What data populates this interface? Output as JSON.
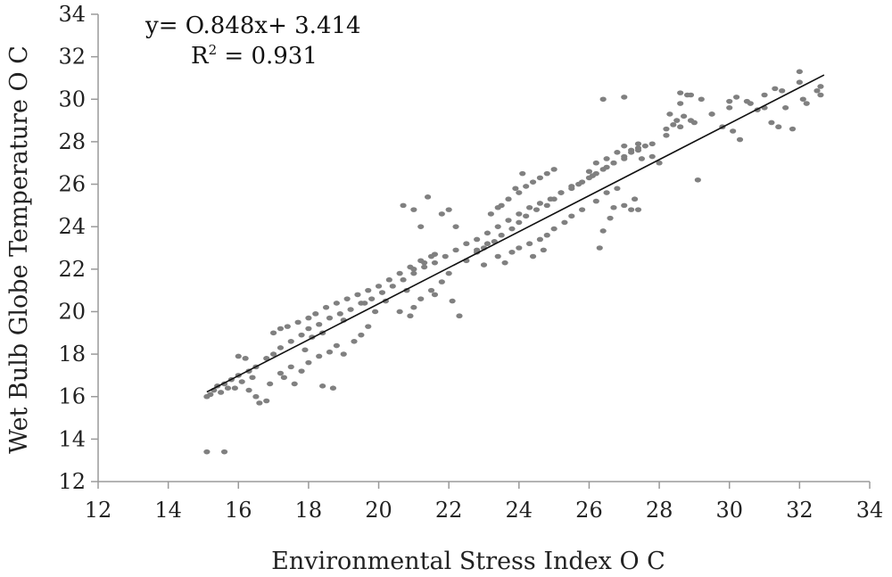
{
  "chart_data": {
    "type": "scatter",
    "title": "",
    "xlabel": "Environmental Stress Index  O C",
    "ylabel": "Wet Bulb Globe Temperature O C",
    "xlim": [
      12,
      34
    ],
    "ylim": [
      12,
      34
    ],
    "xticks": [
      "12",
      "14",
      "16",
      "18",
      "20",
      "22",
      "24",
      "26",
      "28",
      "30",
      "32",
      "34"
    ],
    "yticks": [
      "12",
      "14",
      "16",
      "18",
      "20",
      "22",
      "24",
      "26",
      "28",
      "30",
      "32",
      "34"
    ],
    "grid": false,
    "legend": "none",
    "marker_color": "#808080",
    "trendline_color": "#111111",
    "annotations": {
      "equation": "y= O.848x+ 3.414",
      "r2_prefix": "R",
      "r2_sup": "2",
      "r2_suffix": " = 0.931"
    },
    "trendline": {
      "slope": 0.848,
      "intercept": 3.414,
      "x_range": [
        15.1,
        32.7
      ]
    },
    "points": [
      [
        15.1,
        16.0
      ],
      [
        15.2,
        16.1
      ],
      [
        15.3,
        16.3
      ],
      [
        15.4,
        16.5
      ],
      [
        15.6,
        16.6
      ],
      [
        15.8,
        16.8
      ],
      [
        16.0,
        17.0
      ],
      [
        16.3,
        17.2
      ],
      [
        16.5,
        17.4
      ],
      [
        16.8,
        17.8
      ],
      [
        17.0,
        18.0
      ],
      [
        17.2,
        18.3
      ],
      [
        17.5,
        18.6
      ],
      [
        17.8,
        18.9
      ],
      [
        18.0,
        19.2
      ],
      [
        18.3,
        19.4
      ],
      [
        18.6,
        19.7
      ],
      [
        18.9,
        19.9
      ],
      [
        19.2,
        20.1
      ],
      [
        19.5,
        20.4
      ],
      [
        19.8,
        20.6
      ],
      [
        20.1,
        20.9
      ],
      [
        20.4,
        21.2
      ],
      [
        20.7,
        21.5
      ],
      [
        21.0,
        21.8
      ],
      [
        21.3,
        22.1
      ],
      [
        21.6,
        22.3
      ],
      [
        21.9,
        22.6
      ],
      [
        22.2,
        22.9
      ],
      [
        22.5,
        23.2
      ],
      [
        22.8,
        23.4
      ],
      [
        23.1,
        23.7
      ],
      [
        23.4,
        24.0
      ],
      [
        23.7,
        24.3
      ],
      [
        24.0,
        24.6
      ],
      [
        24.3,
        24.9
      ],
      [
        24.6,
        25.1
      ],
      [
        24.9,
        25.3
      ],
      [
        25.2,
        25.6
      ],
      [
        25.5,
        25.9
      ],
      [
        25.8,
        26.1
      ],
      [
        26.1,
        26.4
      ],
      [
        26.4,
        26.7
      ],
      [
        26.7,
        27.0
      ],
      [
        27.0,
        27.3
      ],
      [
        27.4,
        27.6
      ],
      [
        27.8,
        27.9
      ],
      [
        28.2,
        28.3
      ],
      [
        28.6,
        28.7
      ],
      [
        29.0,
        28.9
      ],
      [
        29.5,
        29.3
      ],
      [
        30.0,
        29.6
      ],
      [
        30.5,
        29.9
      ],
      [
        31.0,
        30.2
      ],
      [
        31.5,
        30.4
      ],
      [
        32.0,
        30.8
      ],
      [
        32.5,
        30.4
      ],
      [
        16.5,
        16.0
      ],
      [
        16.6,
        15.7
      ],
      [
        16.8,
        15.8
      ],
      [
        16.3,
        16.3
      ],
      [
        16.9,
        16.6
      ],
      [
        17.3,
        16.9
      ],
      [
        17.6,
        16.6
      ],
      [
        17.8,
        17.2
      ],
      [
        18.0,
        17.6
      ],
      [
        18.3,
        17.9
      ],
      [
        18.6,
        18.1
      ],
      [
        18.8,
        18.4
      ],
      [
        19.0,
        18.0
      ],
      [
        19.3,
        18.6
      ],
      [
        19.5,
        18.9
      ],
      [
        19.7,
        19.3
      ],
      [
        18.4,
        16.5
      ],
      [
        18.7,
        16.4
      ],
      [
        17.2,
        17.1
      ],
      [
        17.5,
        17.4
      ],
      [
        17.0,
        19.0
      ],
      [
        17.2,
        19.2
      ],
      [
        17.4,
        19.3
      ],
      [
        17.7,
        19.5
      ],
      [
        18.0,
        19.7
      ],
      [
        18.2,
        19.9
      ],
      [
        18.5,
        20.2
      ],
      [
        18.8,
        20.4
      ],
      [
        19.1,
        20.6
      ],
      [
        19.4,
        20.8
      ],
      [
        19.7,
        21.0
      ],
      [
        20.0,
        21.2
      ],
      [
        20.3,
        21.5
      ],
      [
        20.6,
        21.8
      ],
      [
        20.9,
        22.1
      ],
      [
        21.2,
        22.4
      ],
      [
        21.5,
        22.6
      ],
      [
        21.0,
        22.0
      ],
      [
        21.3,
        22.3
      ],
      [
        21.6,
        22.7
      ],
      [
        20.8,
        21.0
      ],
      [
        21.0,
        20.2
      ],
      [
        21.2,
        20.6
      ],
      [
        21.5,
        21.0
      ],
      [
        21.8,
        21.4
      ],
      [
        22.0,
        21.8
      ],
      [
        22.1,
        20.5
      ],
      [
        22.3,
        19.8
      ],
      [
        20.6,
        20.0
      ],
      [
        20.9,
        19.8
      ],
      [
        21.6,
        20.8
      ],
      [
        20.7,
        25.0
      ],
      [
        21.0,
        24.8
      ],
      [
        21.4,
        25.4
      ],
      [
        21.8,
        24.6
      ],
      [
        21.2,
        24.0
      ],
      [
        22.0,
        24.8
      ],
      [
        22.2,
        24.0
      ],
      [
        22.5,
        22.4
      ],
      [
        22.8,
        22.8
      ],
      [
        23.0,
        23.0
      ],
      [
        23.3,
        23.3
      ],
      [
        23.5,
        23.6
      ],
      [
        23.8,
        23.9
      ],
      [
        24.0,
        24.2
      ],
      [
        24.2,
        24.5
      ],
      [
        24.5,
        24.8
      ],
      [
        24.8,
        25.0
      ],
      [
        25.0,
        25.3
      ],
      [
        25.2,
        25.6
      ],
      [
        25.5,
        25.8
      ],
      [
        25.7,
        26.0
      ],
      [
        26.0,
        26.3
      ],
      [
        26.2,
        26.5
      ],
      [
        26.5,
        26.8
      ],
      [
        26.7,
        27.0
      ],
      [
        27.0,
        27.2
      ],
      [
        27.2,
        27.5
      ],
      [
        27.4,
        27.7
      ],
      [
        27.6,
        27.8
      ],
      [
        23.5,
        25.0
      ],
      [
        23.7,
        25.3
      ],
      [
        24.0,
        25.6
      ],
      [
        24.2,
        25.9
      ],
      [
        24.4,
        26.1
      ],
      [
        24.6,
        26.3
      ],
      [
        24.8,
        26.5
      ],
      [
        25.0,
        26.7
      ],
      [
        24.1,
        26.5
      ],
      [
        23.9,
        25.8
      ],
      [
        23.2,
        24.6
      ],
      [
        23.4,
        24.9
      ],
      [
        23.0,
        22.2
      ],
      [
        23.4,
        22.6
      ],
      [
        23.8,
        22.8
      ],
      [
        24.0,
        23.0
      ],
      [
        24.3,
        23.2
      ],
      [
        24.6,
        23.4
      ],
      [
        24.8,
        23.6
      ],
      [
        25.0,
        23.9
      ],
      [
        25.3,
        24.2
      ],
      [
        25.5,
        24.5
      ],
      [
        25.8,
        24.8
      ],
      [
        24.4,
        22.6
      ],
      [
        24.7,
        22.9
      ],
      [
        23.6,
        22.3
      ],
      [
        22.8,
        22.9
      ],
      [
        23.1,
        23.2
      ],
      [
        26.2,
        25.2
      ],
      [
        26.5,
        25.6
      ],
      [
        26.8,
        25.8
      ],
      [
        27.0,
        25.0
      ],
      [
        27.3,
        25.3
      ],
      [
        26.4,
        23.8
      ],
      [
        26.6,
        24.4
      ],
      [
        26.3,
        23.0
      ],
      [
        26.7,
        24.9
      ],
      [
        27.2,
        24.8
      ],
      [
        26.5,
        27.2
      ],
      [
        26.8,
        27.5
      ],
      [
        27.0,
        27.8
      ],
      [
        27.2,
        27.6
      ],
      [
        27.4,
        27.9
      ],
      [
        26.2,
        27.0
      ],
      [
        26.0,
        26.6
      ],
      [
        27.5,
        27.2
      ],
      [
        27.8,
        27.3
      ],
      [
        28.0,
        27.0
      ],
      [
        28.2,
        28.6
      ],
      [
        28.4,
        28.8
      ],
      [
        28.5,
        29.0
      ],
      [
        28.7,
        29.2
      ],
      [
        28.9,
        29.0
      ],
      [
        28.3,
        29.3
      ],
      [
        28.6,
        29.8
      ],
      [
        28.8,
        30.2
      ],
      [
        28.6,
        30.3
      ],
      [
        28.9,
        30.2
      ],
      [
        27.0,
        30.1
      ],
      [
        29.2,
        30.0
      ],
      [
        29.5,
        29.3
      ],
      [
        29.8,
        28.7
      ],
      [
        30.1,
        28.5
      ],
      [
        30.3,
        28.1
      ],
      [
        30.0,
        29.9
      ],
      [
        30.2,
        30.1
      ],
      [
        30.6,
        29.8
      ],
      [
        30.8,
        29.5
      ],
      [
        31.0,
        29.6
      ],
      [
        31.2,
        28.9
      ],
      [
        31.4,
        28.7
      ],
      [
        31.6,
        29.6
      ],
      [
        31.8,
        28.6
      ],
      [
        31.3,
        30.5
      ],
      [
        32.1,
        30.0
      ],
      [
        32.2,
        29.8
      ],
      [
        32.0,
        31.3
      ],
      [
        32.6,
        30.2
      ],
      [
        32.6,
        30.6
      ],
      [
        29.1,
        26.2
      ],
      [
        27.4,
        24.8
      ],
      [
        26.4,
        30.0
      ],
      [
        19.6,
        20.4
      ],
      [
        19.9,
        20.0
      ],
      [
        20.2,
        20.5
      ],
      [
        18.4,
        19.0
      ],
      [
        18.1,
        18.8
      ],
      [
        19.0,
        19.6
      ],
      [
        17.9,
        18.2
      ],
      [
        16.0,
        17.9
      ],
      [
        16.2,
        17.8
      ],
      [
        15.9,
        16.4
      ],
      [
        16.1,
        16.7
      ],
      [
        16.4,
        16.9
      ],
      [
        15.5,
        16.2
      ],
      [
        15.7,
        16.4
      ],
      [
        15.1,
        13.4
      ],
      [
        15.6,
        13.4
      ]
    ]
  }
}
